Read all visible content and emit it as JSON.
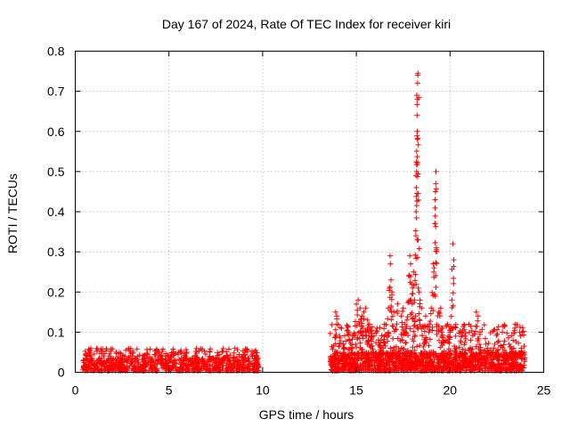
{
  "chart_data": {
    "type": "scatter",
    "title": "Day 167 of 2024, Rate Of TEC Index for receiver kiri",
    "xlabel": "GPS time / hours",
    "ylabel": "ROTI / TECUs",
    "xlim": [
      0,
      25
    ],
    "ylim": [
      0,
      0.8
    ],
    "xticks": [
      0,
      5,
      10,
      15,
      20,
      25
    ],
    "yticks": [
      0,
      0.1,
      0.2,
      0.3,
      0.4,
      0.5,
      0.6,
      0.7,
      0.8
    ],
    "grid": true,
    "marker": "+",
    "color": "#ff0000",
    "series": [
      {
        "name": "ROTI",
        "segments": [
          {
            "start": 0.4,
            "end": 9.8,
            "density": 95,
            "base_max": 0.035,
            "peak_max": 0.06
          },
          {
            "start": 13.6,
            "end": 24.0,
            "density": 140,
            "base_max": 0.05,
            "peak_max": 0.12
          }
        ],
        "spikes": [
          [
            13.9,
            0.15
          ],
          [
            13.95,
            0.12
          ],
          [
            14.1,
            0.09
          ],
          [
            14.3,
            0.07
          ],
          [
            14.6,
            0.1
          ],
          [
            15.0,
            0.17
          ],
          [
            15.1,
            0.18
          ],
          [
            15.2,
            0.16
          ],
          [
            15.3,
            0.14
          ],
          [
            15.4,
            0.15
          ],
          [
            15.5,
            0.16
          ],
          [
            15.6,
            0.13
          ],
          [
            15.7,
            0.12
          ],
          [
            15.8,
            0.09
          ],
          [
            16.1,
            0.11
          ],
          [
            16.3,
            0.08
          ],
          [
            16.5,
            0.12
          ],
          [
            16.7,
            0.16
          ],
          [
            16.8,
            0.29
          ],
          [
            16.82,
            0.27
          ],
          [
            16.85,
            0.23
          ],
          [
            16.9,
            0.2
          ],
          [
            17.0,
            0.15
          ],
          [
            17.2,
            0.17
          ],
          [
            17.4,
            0.14
          ],
          [
            17.5,
            0.16
          ],
          [
            17.6,
            0.12
          ],
          [
            17.7,
            0.13
          ],
          [
            17.8,
            0.24
          ],
          [
            17.85,
            0.29
          ],
          [
            17.9,
            0.27
          ],
          [
            17.95,
            0.22
          ],
          [
            18.0,
            0.21
          ],
          [
            18.05,
            0.25
          ],
          [
            18.1,
            0.18
          ],
          [
            18.15,
            0.14
          ],
          [
            18.18,
            0.34
          ],
          [
            18.19,
            0.4
          ],
          [
            18.2,
            0.46
          ],
          [
            18.22,
            0.5
          ],
          [
            18.24,
            0.64
          ],
          [
            18.25,
            0.6
          ],
          [
            18.26,
            0.68
          ],
          [
            18.27,
            0.72
          ],
          [
            18.28,
            0.74
          ],
          [
            18.29,
            0.745
          ],
          [
            18.3,
            0.33
          ],
          [
            18.35,
            0.2
          ],
          [
            18.4,
            0.18
          ],
          [
            18.5,
            0.16
          ],
          [
            18.7,
            0.14
          ],
          [
            18.9,
            0.12
          ],
          [
            19.0,
            0.16
          ],
          [
            19.1,
            0.27
          ],
          [
            19.15,
            0.26
          ],
          [
            19.2,
            0.43
          ],
          [
            19.22,
            0.45
          ],
          [
            19.24,
            0.47
          ],
          [
            19.25,
            0.5
          ],
          [
            19.27,
            0.31
          ],
          [
            19.4,
            0.15
          ],
          [
            19.5,
            0.16
          ],
          [
            19.55,
            0.1
          ],
          [
            19.7,
            0.08
          ],
          [
            19.9,
            0.09
          ],
          [
            20.0,
            0.1
          ],
          [
            20.1,
            0.18
          ],
          [
            20.15,
            0.32
          ],
          [
            20.2,
            0.28
          ],
          [
            20.3,
            0.09
          ],
          [
            20.6,
            0.1
          ],
          [
            20.8,
            0.09
          ],
          [
            21.1,
            0.08
          ],
          [
            21.4,
            0.15
          ],
          [
            21.5,
            0.14
          ],
          [
            21.6,
            0.1
          ],
          [
            22.0,
            0.06
          ],
          [
            22.5,
            0.05
          ],
          [
            23.0,
            0.04
          ],
          [
            23.4,
            0.06
          ],
          [
            23.8,
            0.06
          ]
        ]
      }
    ]
  }
}
